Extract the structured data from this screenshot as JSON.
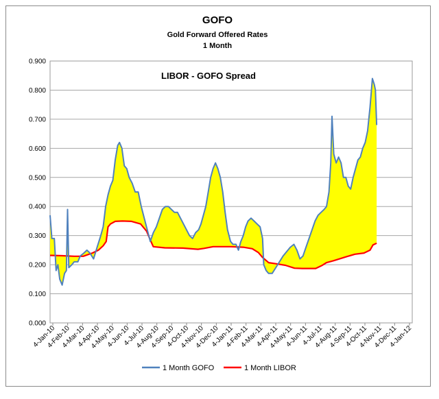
{
  "chart_data": {
    "type": "line",
    "title": "GOFO",
    "subtitle_1": "Gold Forward Offered Rates",
    "subtitle_2": "1 Month",
    "annotation": "LIBOR - GOFO Spread",
    "ylim": [
      0,
      0.9
    ],
    "y_ticks": [
      "0.000",
      "0.100",
      "0.200",
      "0.300",
      "0.400",
      "0.500",
      "0.600",
      "0.700",
      "0.800",
      "0.900"
    ],
    "x_ticks": [
      "4-Jan-10",
      "4-Feb-10",
      "4-Mar-10",
      "4-Apr-10",
      "4-May-10",
      "4-Jun-10",
      "4-Jul-10",
      "4-Aug-10",
      "4-Sep-10",
      "4-Oct-10",
      "4-Nov-10",
      "4-Dec-10",
      "4-Jan-11",
      "4-Feb-11",
      "4-Mar-11",
      "4-Apr-11",
      "4-May-11",
      "4-Jun-11",
      "4-Jul-11",
      "4-Aug-11",
      "4-Sep-11",
      "4-Oct-11",
      "4-Nov-11",
      "4-Dec-11",
      "4-Jan-12"
    ],
    "fill_color": "#FFFF00",
    "series": [
      {
        "name": "1 Month GOFO",
        "color": "#4F81BD",
        "points": [
          [
            0,
            0.37
          ],
          [
            3,
            0.29
          ],
          [
            7,
            0.29
          ],
          [
            10,
            0.18
          ],
          [
            13,
            0.2
          ],
          [
            16,
            0.15
          ],
          [
            20,
            0.13
          ],
          [
            24,
            0.17
          ],
          [
            27,
            0.18
          ],
          [
            29,
            0.39
          ],
          [
            31,
            0.19
          ],
          [
            36,
            0.2
          ],
          [
            40,
            0.21
          ],
          [
            46,
            0.21
          ],
          [
            50,
            0.23
          ],
          [
            56,
            0.24
          ],
          [
            61,
            0.25
          ],
          [
            66,
            0.24
          ],
          [
            72,
            0.22
          ],
          [
            78,
            0.26
          ],
          [
            84,
            0.3
          ],
          [
            88,
            0.33
          ],
          [
            92,
            0.4
          ],
          [
            96,
            0.44
          ],
          [
            100,
            0.47
          ],
          [
            104,
            0.49
          ],
          [
            108,
            0.56
          ],
          [
            112,
            0.61
          ],
          [
            115,
            0.62
          ],
          [
            119,
            0.6
          ],
          [
            123,
            0.54
          ],
          [
            127,
            0.53
          ],
          [
            131,
            0.5
          ],
          [
            136,
            0.48
          ],
          [
            141,
            0.45
          ],
          [
            146,
            0.45
          ],
          [
            151,
            0.4
          ],
          [
            156,
            0.36
          ],
          [
            161,
            0.32
          ],
          [
            166,
            0.28
          ],
          [
            171,
            0.31
          ],
          [
            176,
            0.33
          ],
          [
            181,
            0.36
          ],
          [
            186,
            0.39
          ],
          [
            191,
            0.4
          ],
          [
            196,
            0.4
          ],
          [
            201,
            0.39
          ],
          [
            206,
            0.38
          ],
          [
            211,
            0.38
          ],
          [
            216,
            0.36
          ],
          [
            221,
            0.34
          ],
          [
            226,
            0.32
          ],
          [
            231,
            0.3
          ],
          [
            236,
            0.29
          ],
          [
            241,
            0.31
          ],
          [
            246,
            0.32
          ],
          [
            250,
            0.34
          ],
          [
            254,
            0.37
          ],
          [
            258,
            0.4
          ],
          [
            262,
            0.45
          ],
          [
            266,
            0.5
          ],
          [
            270,
            0.53
          ],
          [
            274,
            0.55
          ],
          [
            278,
            0.53
          ],
          [
            282,
            0.5
          ],
          [
            286,
            0.45
          ],
          [
            290,
            0.38
          ],
          [
            294,
            0.32
          ],
          [
            299,
            0.28
          ],
          [
            303,
            0.27
          ],
          [
            308,
            0.27
          ],
          [
            312,
            0.25
          ],
          [
            316,
            0.28
          ],
          [
            320,
            0.3
          ],
          [
            324,
            0.33
          ],
          [
            328,
            0.35
          ],
          [
            333,
            0.36
          ],
          [
            338,
            0.35
          ],
          [
            343,
            0.34
          ],
          [
            348,
            0.33
          ],
          [
            352,
            0.29
          ],
          [
            354,
            0.2
          ],
          [
            358,
            0.18
          ],
          [
            362,
            0.17
          ],
          [
            368,
            0.17
          ],
          [
            374,
            0.19
          ],
          [
            380,
            0.21
          ],
          [
            386,
            0.23
          ],
          [
            390,
            0.24
          ],
          [
            394,
            0.25
          ],
          [
            398,
            0.26
          ],
          [
            404,
            0.27
          ],
          [
            409,
            0.25
          ],
          [
            414,
            0.22
          ],
          [
            419,
            0.23
          ],
          [
            424,
            0.26
          ],
          [
            429,
            0.29
          ],
          [
            434,
            0.32
          ],
          [
            439,
            0.35
          ],
          [
            444,
            0.37
          ],
          [
            449,
            0.38
          ],
          [
            454,
            0.39
          ],
          [
            458,
            0.4
          ],
          [
            462,
            0.45
          ],
          [
            465,
            0.55
          ],
          [
            467,
            0.71
          ],
          [
            470,
            0.58
          ],
          [
            474,
            0.55
          ],
          [
            478,
            0.57
          ],
          [
            482,
            0.55
          ],
          [
            486,
            0.5
          ],
          [
            490,
            0.5
          ],
          [
            494,
            0.47
          ],
          [
            498,
            0.46
          ],
          [
            502,
            0.5
          ],
          [
            506,
            0.53
          ],
          [
            510,
            0.56
          ],
          [
            514,
            0.57
          ],
          [
            518,
            0.6
          ],
          [
            522,
            0.62
          ],
          [
            526,
            0.66
          ],
          [
            530,
            0.74
          ],
          [
            534,
            0.84
          ],
          [
            537,
            0.82
          ],
          [
            539,
            0.8
          ],
          [
            541,
            0.68
          ]
        ]
      },
      {
        "name": "1 Month LIBOR",
        "color": "#FF0000",
        "points": [
          [
            0,
            0.232
          ],
          [
            20,
            0.231
          ],
          [
            40,
            0.229
          ],
          [
            55,
            0.229
          ],
          [
            70,
            0.24
          ],
          [
            80,
            0.25
          ],
          [
            88,
            0.265
          ],
          [
            93,
            0.28
          ],
          [
            96,
            0.33
          ],
          [
            100,
            0.34
          ],
          [
            108,
            0.349
          ],
          [
            120,
            0.35
          ],
          [
            135,
            0.349
          ],
          [
            150,
            0.34
          ],
          [
            160,
            0.315
          ],
          [
            166,
            0.285
          ],
          [
            171,
            0.262
          ],
          [
            190,
            0.258
          ],
          [
            220,
            0.257
          ],
          [
            245,
            0.253
          ],
          [
            255,
            0.256
          ],
          [
            270,
            0.262
          ],
          [
            300,
            0.262
          ],
          [
            320,
            0.26
          ],
          [
            335,
            0.255
          ],
          [
            345,
            0.242
          ],
          [
            352,
            0.225
          ],
          [
            362,
            0.207
          ],
          [
            375,
            0.203
          ],
          [
            390,
            0.198
          ],
          [
            405,
            0.188
          ],
          [
            418,
            0.187
          ],
          [
            440,
            0.187
          ],
          [
            450,
            0.197
          ],
          [
            458,
            0.207
          ],
          [
            470,
            0.214
          ],
          [
            490,
            0.227
          ],
          [
            505,
            0.236
          ],
          [
            520,
            0.24
          ],
          [
            530,
            0.25
          ],
          [
            535,
            0.268
          ],
          [
            541,
            0.274
          ]
        ]
      }
    ],
    "x_range": [
      0,
      600
    ],
    "legend_position": "bottom"
  }
}
